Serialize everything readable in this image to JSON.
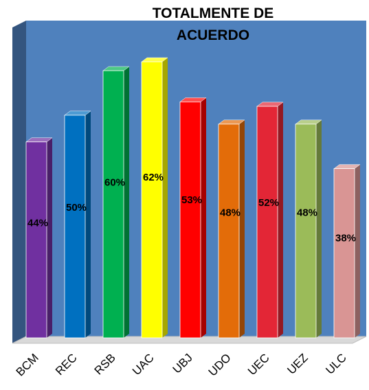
{
  "chart_data": {
    "type": "bar3d",
    "title": "TOTALMENTE DE ACUERDO",
    "categories": [
      "BCM",
      "REC",
      "RSB",
      "UAC",
      "UBJ",
      "UDO",
      "UEC",
      "UEZ",
      "ULC"
    ],
    "values": [
      44,
      50,
      60,
      62,
      53,
      48,
      52,
      48,
      38
    ],
    "value_labels": [
      "44%",
      "50%",
      "60%",
      "62%",
      "53%",
      "48%",
      "52%",
      "48%",
      "38%"
    ],
    "colors": [
      "#7030a0",
      "#0070c0",
      "#00b050",
      "#ffff00",
      "#ff0000",
      "#e36c09",
      "#e32636",
      "#9bbb59",
      "#d99594"
    ]
  }
}
